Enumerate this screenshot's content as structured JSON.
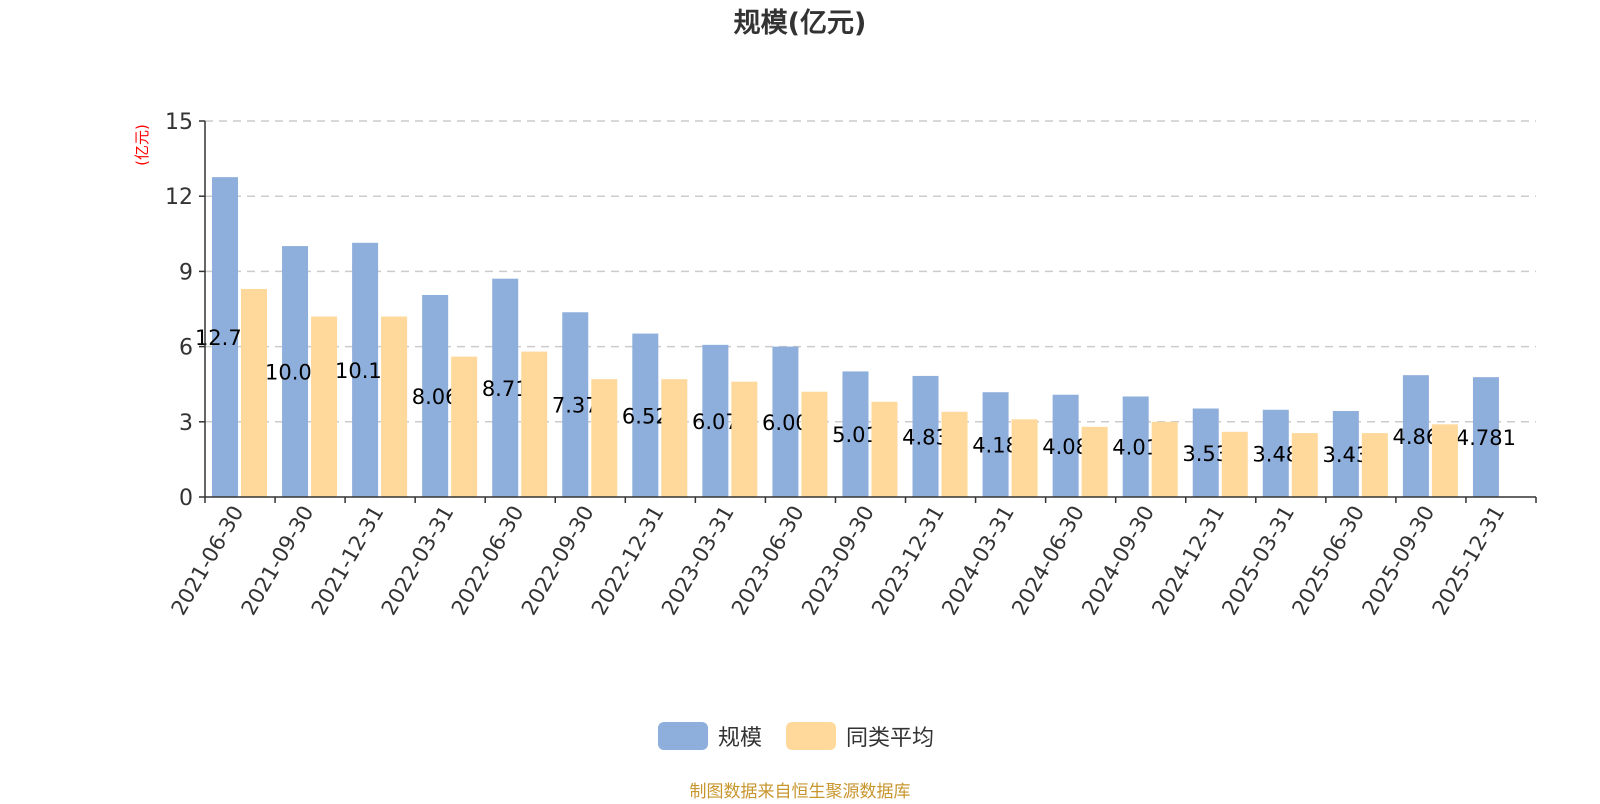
{
  "chart_data": {
    "type": "bar",
    "title": "规模(亿元)",
    "ylabel": "(亿元)",
    "xlabel": "",
    "ylim": [
      0,
      15
    ],
    "yticks": [
      0,
      3,
      6,
      9,
      12,
      15
    ],
    "grid": true,
    "legend_position": "bottom-center",
    "categories": [
      "2021-06-30",
      "2021-09-30",
      "2021-12-31",
      "2022-03-31",
      "2022-06-30",
      "2022-09-30",
      "2022-12-31",
      "2023-03-31",
      "2023-06-30",
      "2023-09-30",
      "2023-12-31",
      "2024-03-31",
      "2024-06-30",
      "2024-09-30",
      "2024-12-31",
      "2025-03-31",
      "2025-06-30",
      "2025-09-30",
      "2025-12-31"
    ],
    "series": [
      {
        "name": "规模",
        "color": "#8eaedb",
        "values": [
          12.76,
          10.01,
          10.14,
          8.06,
          8.71,
          7.37,
          6.52,
          6.07,
          6.0,
          5.01,
          4.83,
          4.18,
          4.08,
          4.01,
          3.53,
          3.48,
          3.43,
          4.86,
          4.781
        ],
        "labels": [
          "12.76",
          "10.01",
          "10.14",
          "8.06",
          "8.71",
          "7.37",
          "6.52",
          "6.07",
          "6.00",
          "5.01",
          "4.83",
          "4.18",
          "4.08",
          "4.01",
          "3.53",
          "3.48",
          "3.43",
          "4.86",
          "4.781"
        ]
      },
      {
        "name": "同类平均",
        "color": "#fed99b",
        "values": [
          8.3,
          7.2,
          7.2,
          5.6,
          5.8,
          4.7,
          4.7,
          4.6,
          4.2,
          3.8,
          3.4,
          3.1,
          2.8,
          3.0,
          2.6,
          2.55,
          2.55,
          2.9,
          null
        ]
      }
    ]
  },
  "footer": "制图数据来自恒生聚源数据库",
  "colors": {
    "title": "#333333",
    "ylabel": "#ff0000",
    "footer": "#c8962e",
    "grid": "#cccccc",
    "axis": "#333333"
  }
}
